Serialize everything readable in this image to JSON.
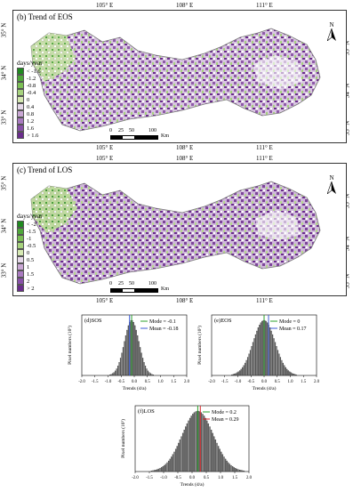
{
  "maps": [
    {
      "title": "(b) Trend of EOS",
      "top_lon_labels": [
        "105° E",
        "108° E",
        "111° E"
      ],
      "bottom_lon_labels": [
        "105° E",
        "108° E",
        "111° E"
      ],
      "left_lat_labels": [
        "35° N",
        "34° N",
        "33° N"
      ],
      "right_lat_labels": [
        "35° N",
        "34° N",
        "33° N"
      ],
      "legend_title": "days/year",
      "legend": [
        {
          "label": "< -1.6",
          "color": "#1f8a1f"
        },
        {
          "label": "-1.2",
          "color": "#4fa83a"
        },
        {
          "label": "-0.8",
          "color": "#7bbf55"
        },
        {
          "label": "-0.4",
          "color": "#a6d27d"
        },
        {
          "label": "0",
          "color": "#d6e9b3"
        },
        {
          "label": "0.4",
          "color": "#e6d9ea"
        },
        {
          "label": "0.8",
          "color": "#c9a7d4"
        },
        {
          "label": "1.2",
          "color": "#a97ac0"
        },
        {
          "label": "1.6",
          "color": "#8850a8"
        },
        {
          "label": "> 1.6",
          "color": "#6a2c8c"
        }
      ],
      "scale_labels": [
        "0",
        "25",
        "50",
        "100"
      ],
      "scale_unit": "Km",
      "north": "N"
    },
    {
      "title": "(c) Trend of LOS",
      "top_lon_labels": [
        "105° E",
        "108° E",
        "111° E"
      ],
      "bottom_lon_labels": [
        "105° E",
        "108° E",
        "111° E"
      ],
      "left_lat_labels": [
        "35° N",
        "34° N",
        "33° N"
      ],
      "right_lat_labels": [
        "35° N",
        "34° N",
        "33° N"
      ],
      "legend_title": "days/year",
      "legend": [
        {
          "label": "< -2",
          "color": "#1f8a1f"
        },
        {
          "label": "-1.5",
          "color": "#4fa83a"
        },
        {
          "label": "-1",
          "color": "#7bbf55"
        },
        {
          "label": "-0.5",
          "color": "#a6d27d"
        },
        {
          "label": "0",
          "color": "#d6e9b3"
        },
        {
          "label": "0.5",
          "color": "#e6d9ea"
        },
        {
          "label": "1",
          "color": "#c9a7d4"
        },
        {
          "label": "1.5",
          "color": "#a97ac0"
        },
        {
          "label": "2",
          "color": "#8850a8"
        },
        {
          "label": "> 2",
          "color": "#6a2c8c"
        }
      ],
      "scale_labels": [
        "0",
        "25",
        "50",
        "100"
      ],
      "scale_unit": "Km",
      "north": "N"
    }
  ],
  "chart_data": [
    {
      "type": "bar",
      "title": "(d)SOS",
      "xlabel": "Trends (d/a)",
      "ylabel": "Pixel numbers (10³)",
      "xlim": [
        -2.0,
        2.0
      ],
      "xticks": [
        "-2.0",
        "-1.5",
        "-1.0",
        "-0.5",
        "0.0",
        "0.5",
        "1.0",
        "1.5",
        "2.0"
      ],
      "mode_label": "Mode = -0.1",
      "mean_label": "Mean = -0.18",
      "mode": -0.1,
      "mean": -0.18,
      "sd": 0.28,
      "mode_color": "#2ca02c",
      "mean_color": "#3b5bd6"
    },
    {
      "type": "bar",
      "title": "(e)EOS",
      "xlabel": "Trends (d/a)",
      "ylabel": "Pixel numbers (10³)",
      "xlim": [
        -2.0,
        2.0
      ],
      "xticks": [
        "-2.0",
        "-1.5",
        "-1.0",
        "-0.5",
        "0.0",
        "0.5",
        "1.0",
        "1.5",
        "2.0"
      ],
      "mode_label": "Mode = 0",
      "mean_label": "Mean = 0.17",
      "mode": 0,
      "mean": 0.17,
      "sd": 0.42,
      "mode_color": "#2ca02c",
      "mean_color": "#3b5bd6"
    },
    {
      "type": "bar",
      "title": "(f)LOS",
      "xlabel": "Trends (d/a)",
      "ylabel": "Pixel numbers (10³)",
      "xlim": [
        -2.0,
        2.0
      ],
      "xticks": [
        "-2.0",
        "-1.5",
        "-1.0",
        "-0.5",
        "0.0",
        "0.5",
        "1.0",
        "1.5",
        "2.0"
      ],
      "mode_label": "Mode = 0.2",
      "mean_label": "Mean = 0.29",
      "mode": 0.2,
      "mean": 0.29,
      "sd": 0.55,
      "mode_color": "#2ca02c",
      "mean_color": "#d62728"
    }
  ]
}
